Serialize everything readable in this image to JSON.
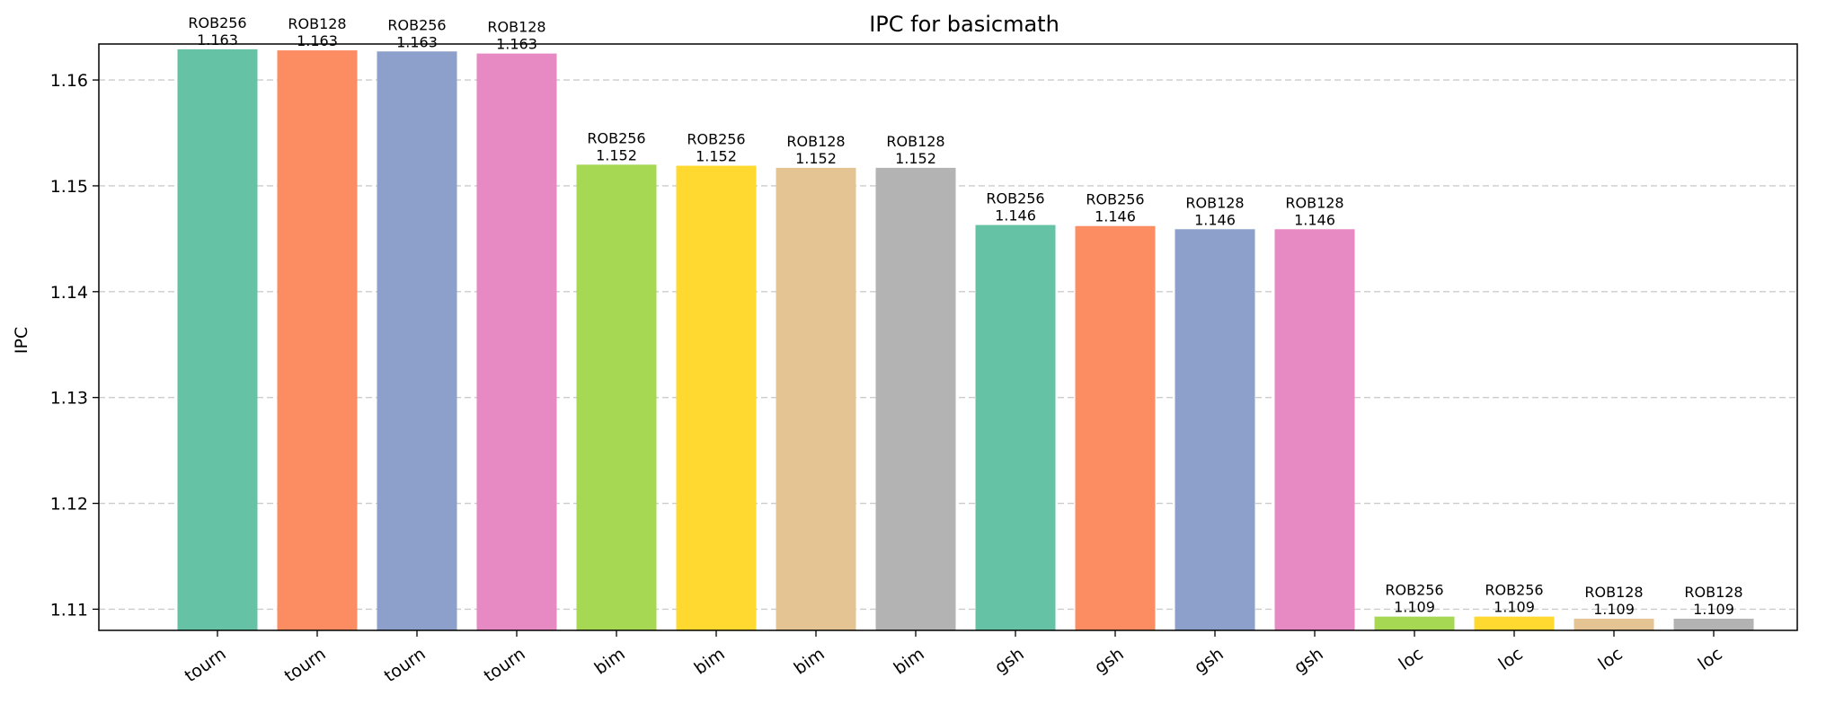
{
  "chart_data": {
    "type": "bar",
    "title": "IPC for basicmath",
    "xlabel": "",
    "ylabel": "IPC",
    "ylim": [
      1.108,
      1.1634
    ],
    "yticks": [
      1.11,
      1.12,
      1.13,
      1.14,
      1.15,
      1.16
    ],
    "ytick_labels": [
      "1.11",
      "1.12",
      "1.13",
      "1.14",
      "1.15",
      "1.16"
    ],
    "grid": "horizontal dashed",
    "categories": [
      "tourn",
      "tourn",
      "tourn",
      "tourn",
      "bim",
      "bim",
      "bim",
      "bim",
      "gsh",
      "gsh",
      "gsh",
      "gsh",
      "loc",
      "loc",
      "loc",
      "loc"
    ],
    "values": [
      1.1629,
      1.1628,
      1.1627,
      1.1625,
      1.152,
      1.1519,
      1.1517,
      1.1517,
      1.1463,
      1.1462,
      1.1459,
      1.1459,
      1.1093,
      1.1093,
      1.1091,
      1.1091
    ],
    "bar_labels": [
      "ROB256",
      "ROB128",
      "ROB256",
      "ROB128",
      "ROB256",
      "ROB256",
      "ROB128",
      "ROB128",
      "ROB256",
      "ROB256",
      "ROB128",
      "ROB128",
      "ROB256",
      "ROB256",
      "ROB128",
      "ROB128"
    ],
    "value_labels": [
      "1.163",
      "1.163",
      "1.163",
      "1.163",
      "1.152",
      "1.152",
      "1.152",
      "1.152",
      "1.146",
      "1.146",
      "1.146",
      "1.146",
      "1.109",
      "1.109",
      "1.109",
      "1.109"
    ],
    "colors": [
      "#66c2a5",
      "#fc8d62",
      "#8da0cb",
      "#e78ac3",
      "#a6d854",
      "#ffd92f",
      "#e5c494",
      "#b3b3b3",
      "#66c2a5",
      "#fc8d62",
      "#8da0cb",
      "#e78ac3",
      "#a6d854",
      "#ffd92f",
      "#e5c494",
      "#b3b3b3"
    ]
  }
}
